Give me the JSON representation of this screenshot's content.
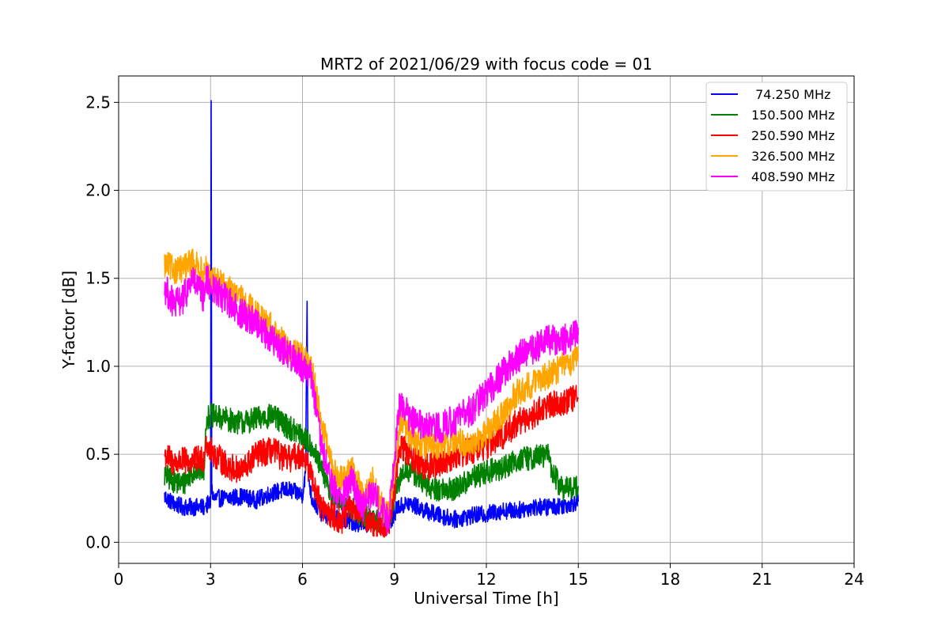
{
  "chart_data": {
    "type": "line",
    "title": "MRT2 of 2021/06/29 with focus code = 01",
    "xlabel": "Universal Time [h]",
    "ylabel": "Y-factor [dB]",
    "xlim": [
      0,
      24
    ],
    "ylim": [
      -0.12,
      2.65
    ],
    "xticks": [
      0,
      3,
      6,
      9,
      12,
      15,
      18,
      21,
      24
    ],
    "yticks": [
      0.0,
      0.5,
      1.0,
      1.5,
      2.0,
      2.5
    ],
    "ytick_labels": [
      "0.0",
      "0.5",
      "1.0",
      "1.5",
      "2.0",
      "2.5"
    ],
    "grid": true,
    "legend_position": "top-right",
    "series": [
      {
        "name": " 74.250 MHz",
        "color": "#0000ff",
        "noise": 0.05,
        "x": [
          1.5,
          1.8,
          2.1,
          2.4,
          2.8,
          2.85,
          3.0,
          3.02,
          3.04,
          3.1,
          3.5,
          4.0,
          4.5,
          5.0,
          5.5,
          6.0,
          6.1,
          6.15,
          6.18,
          6.3,
          6.6,
          7.0,
          7.5,
          8.0,
          8.3,
          8.6,
          8.8,
          9.1,
          9.5,
          10.0,
          10.5,
          11.0,
          11.5,
          12.0,
          12.5,
          13.0,
          13.5,
          14.0,
          14.5,
          15.0
        ],
        "y": [
          0.26,
          0.22,
          0.2,
          0.2,
          0.2,
          0.21,
          0.22,
          2.51,
          0.3,
          0.25,
          0.25,
          0.26,
          0.24,
          0.28,
          0.3,
          0.27,
          0.4,
          1.37,
          0.4,
          0.25,
          0.17,
          0.14,
          0.12,
          0.1,
          0.12,
          0.1,
          0.09,
          0.2,
          0.22,
          0.18,
          0.15,
          0.13,
          0.15,
          0.16,
          0.18,
          0.18,
          0.2,
          0.2,
          0.21,
          0.23
        ]
      },
      {
        "name": "150.500 MHz",
        "color": "#008000",
        "noise": 0.07,
        "x": [
          1.5,
          1.8,
          2.1,
          2.4,
          2.8,
          2.85,
          3.0,
          3.5,
          4.0,
          4.5,
          5.0,
          5.5,
          6.0,
          6.3,
          6.6,
          7.0,
          7.5,
          8.0,
          8.3,
          8.6,
          8.8,
          9.0,
          9.3,
          9.7,
          10.0,
          10.5,
          11.0,
          11.5,
          12.0,
          12.5,
          13.0,
          13.5,
          14.0,
          14.2,
          14.5,
          15.0
        ],
        "y": [
          0.38,
          0.35,
          0.33,
          0.4,
          0.42,
          0.7,
          0.72,
          0.7,
          0.68,
          0.7,
          0.72,
          0.66,
          0.6,
          0.55,
          0.42,
          0.25,
          0.2,
          0.15,
          0.13,
          0.12,
          0.12,
          0.25,
          0.42,
          0.38,
          0.32,
          0.3,
          0.3,
          0.36,
          0.4,
          0.42,
          0.47,
          0.48,
          0.5,
          0.38,
          0.3,
          0.32
        ]
      },
      {
        "name": "250.590 MHz",
        "color": "#ff0000",
        "noise": 0.08,
        "x": [
          1.5,
          1.8,
          2.1,
          2.4,
          2.8,
          2.85,
          3.0,
          3.5,
          4.0,
          4.5,
          5.0,
          5.5,
          6.0,
          6.3,
          6.6,
          7.0,
          7.3,
          7.6,
          8.0,
          8.3,
          8.6,
          8.8,
          9.0,
          9.2,
          9.5,
          10.0,
          10.5,
          11.0,
          11.5,
          12.0,
          12.5,
          13.0,
          13.5,
          14.0,
          14.5,
          15.0
        ],
        "y": [
          0.5,
          0.45,
          0.46,
          0.46,
          0.48,
          0.58,
          0.52,
          0.44,
          0.4,
          0.5,
          0.52,
          0.47,
          0.5,
          0.38,
          0.2,
          0.15,
          0.12,
          0.2,
          0.15,
          0.1,
          0.12,
          0.08,
          0.3,
          0.55,
          0.5,
          0.42,
          0.45,
          0.5,
          0.52,
          0.55,
          0.6,
          0.68,
          0.72,
          0.78,
          0.8,
          0.82
        ]
      },
      {
        "name": "326.500 MHz",
        "color": "#ffa500",
        "noise": 0.08,
        "x": [
          1.5,
          1.8,
          2.1,
          2.4,
          2.8,
          2.85,
          3.0,
          3.5,
          4.0,
          4.5,
          5.0,
          5.5,
          6.0,
          6.3,
          6.6,
          7.0,
          7.3,
          7.6,
          8.0,
          8.3,
          8.6,
          8.8,
          9.0,
          9.2,
          9.5,
          10.0,
          10.5,
          11.0,
          11.5,
          12.0,
          12.5,
          13.0,
          13.5,
          14.0,
          14.5,
          15.0
        ],
        "y": [
          1.58,
          1.55,
          1.55,
          1.6,
          1.52,
          1.55,
          1.5,
          1.45,
          1.38,
          1.3,
          1.22,
          1.1,
          1.05,
          1.0,
          0.7,
          0.4,
          0.35,
          0.42,
          0.25,
          0.35,
          0.2,
          0.15,
          0.42,
          0.7,
          0.6,
          0.55,
          0.55,
          0.58,
          0.55,
          0.62,
          0.72,
          0.85,
          0.9,
          0.95,
          1.0,
          1.05
        ]
      },
      {
        "name": "408.590 MHz",
        "color": "#ff00ff",
        "noise": 0.09,
        "x": [
          1.5,
          1.8,
          2.1,
          2.4,
          2.8,
          2.85,
          3.0,
          3.5,
          4.0,
          4.5,
          5.0,
          5.5,
          6.0,
          6.3,
          6.6,
          7.0,
          7.3,
          7.6,
          8.0,
          8.3,
          8.6,
          8.8,
          9.0,
          9.2,
          9.5,
          10.0,
          10.5,
          11.0,
          11.5,
          12.0,
          12.5,
          13.0,
          13.5,
          14.0,
          14.5,
          15.0
        ],
        "y": [
          1.45,
          1.35,
          1.38,
          1.5,
          1.38,
          1.5,
          1.45,
          1.38,
          1.3,
          1.25,
          1.15,
          1.08,
          1.0,
          0.95,
          0.55,
          0.3,
          0.25,
          0.35,
          0.2,
          0.3,
          0.18,
          0.12,
          0.5,
          0.82,
          0.7,
          0.65,
          0.65,
          0.7,
          0.75,
          0.85,
          0.95,
          1.05,
          1.1,
          1.15,
          1.15,
          1.18
        ]
      }
    ]
  }
}
